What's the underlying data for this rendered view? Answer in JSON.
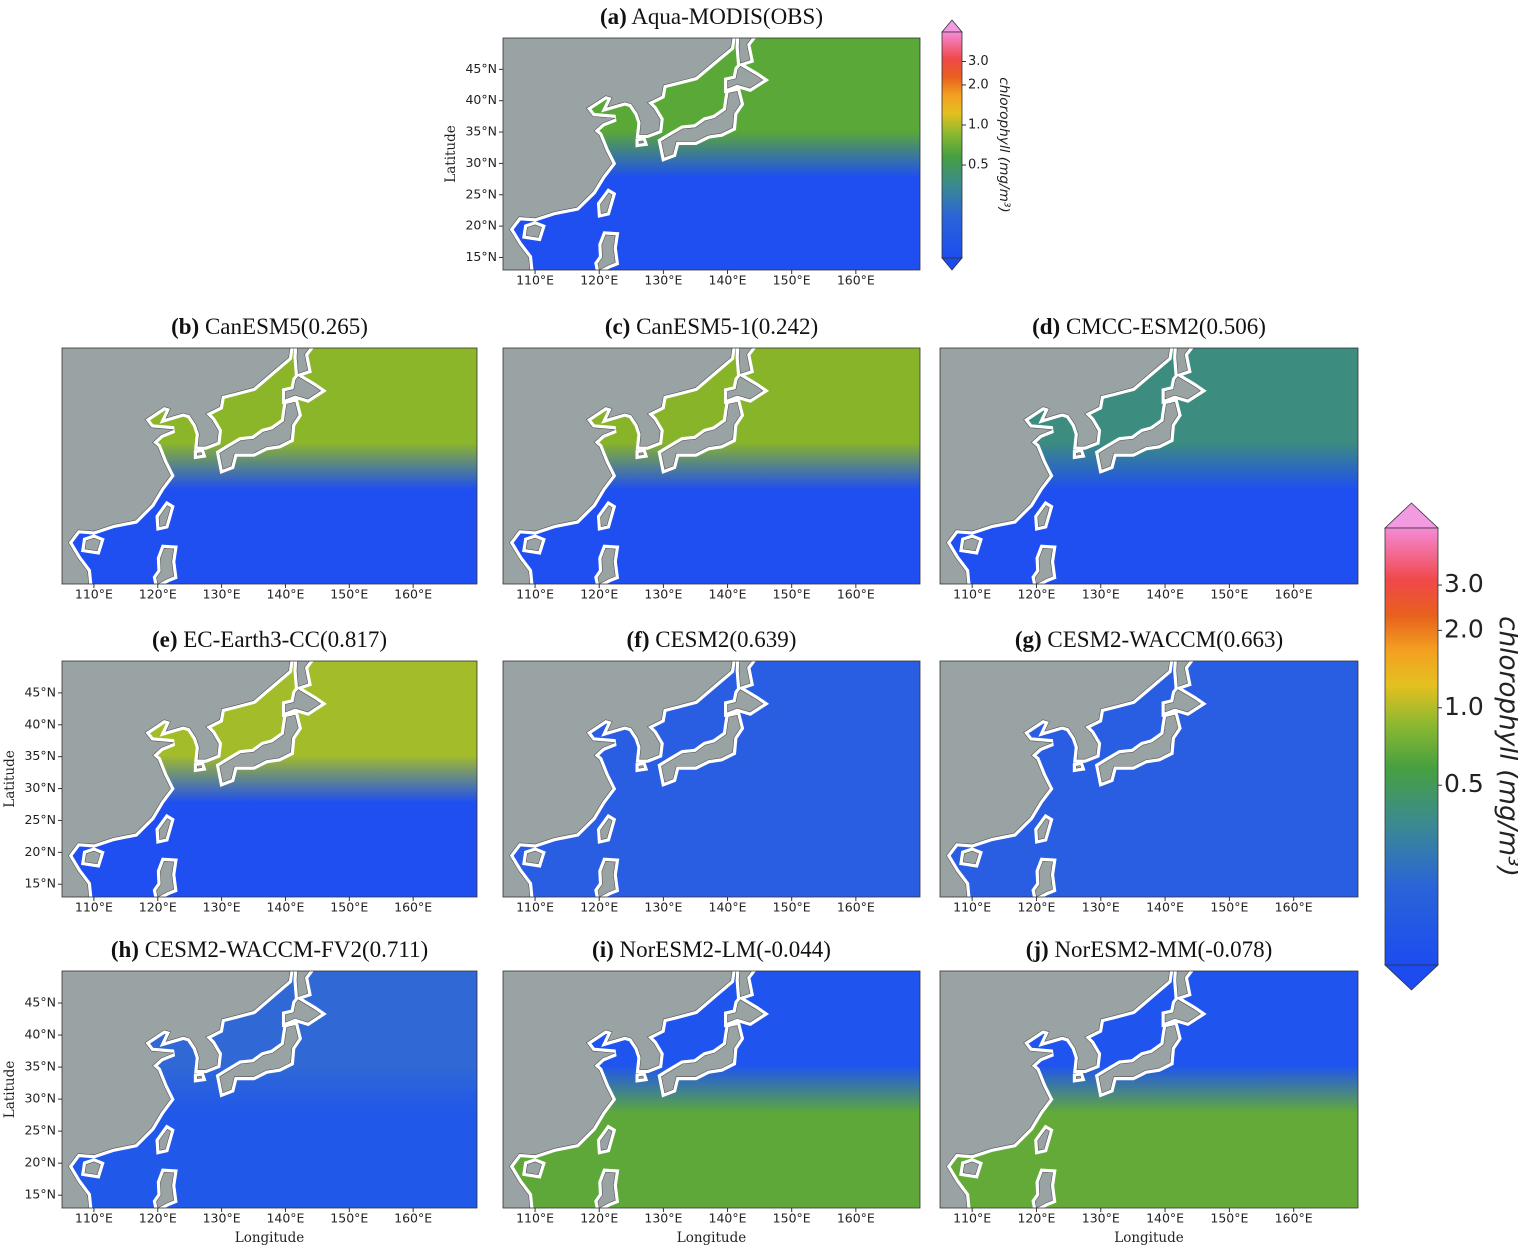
{
  "panels": [
    {
      "label": "(a)",
      "title": "Aqua-MODIS(OBS)",
      "colors": [
        "#5aa838",
        "#1f4ff0"
      ]
    },
    {
      "label": "(b)",
      "title": "CanESM5(0.265)",
      "colors": [
        "#8cb62a",
        "#1f4ff0"
      ]
    },
    {
      "label": "(c)",
      "title": "CanESM5-1(0.242)",
      "colors": [
        "#88b42a",
        "#1f4ff0"
      ]
    },
    {
      "label": "(d)",
      "title": "CMCC-ESM2(0.506)",
      "colors": [
        "#3c8c80",
        "#1f4ff0"
      ]
    },
    {
      "label": "(e)",
      "title": "EC-Earth3-CC(0.817)",
      "colors": [
        "#a2bc2a",
        "#1f4ff0"
      ]
    },
    {
      "label": "(f)",
      "title": "CESM2(0.639)",
      "colors": [
        "#2a5ee2",
        "#2a5ee2"
      ]
    },
    {
      "label": "(g)",
      "title": "CESM2-WACCM(0.663)",
      "colors": [
        "#2a5ee2",
        "#2a5ee2"
      ]
    },
    {
      "label": "(h)",
      "title": "CESM2-WACCM-FV2(0.711)",
      "colors": [
        "#3068d6",
        "#2058ea"
      ]
    },
    {
      "label": "(i)",
      "title": "NorESM2-LM(-0.044)",
      "colors": [
        "#1f55ee",
        "#5ea83a"
      ]
    },
    {
      "label": "(j)",
      "title": "NorESM2-MM(-0.078)",
      "colors": [
        "#1f55ee",
        "#64aa38"
      ]
    }
  ],
  "xlim": [
    105,
    170
  ],
  "ylim": [
    13,
    50
  ],
  "xticks": [
    {
      "value": 110,
      "label": "110°E"
    },
    {
      "value": 120,
      "label": "120°E"
    },
    {
      "value": 130,
      "label": "130°E"
    },
    {
      "value": 140,
      "label": "140°E"
    },
    {
      "value": 150,
      "label": "150°E"
    },
    {
      "value": 160,
      "label": "160°E"
    }
  ],
  "yticks": [
    {
      "value": 15,
      "label": "15°N"
    },
    {
      "value": 20,
      "label": "20°N"
    },
    {
      "value": 25,
      "label": "25°N"
    },
    {
      "value": 30,
      "label": "30°N"
    },
    {
      "value": 35,
      "label": "35°N"
    },
    {
      "value": 40,
      "label": "40°N"
    },
    {
      "value": 45,
      "label": "45°N"
    }
  ],
  "x_label": "Longitude",
  "y_label": "Latitude",
  "colorbar": {
    "label": "chlorophyll (mg/m³)",
    "log": true,
    "lim": [
      0.1,
      5
    ],
    "ticks": [
      0.5,
      {
        "value": 1,
        "label": "1.0"
      },
      {
        "value": 2,
        "label": "2.0"
      },
      {
        "value": 3,
        "label": "3.0"
      }
    ]
  }
}
